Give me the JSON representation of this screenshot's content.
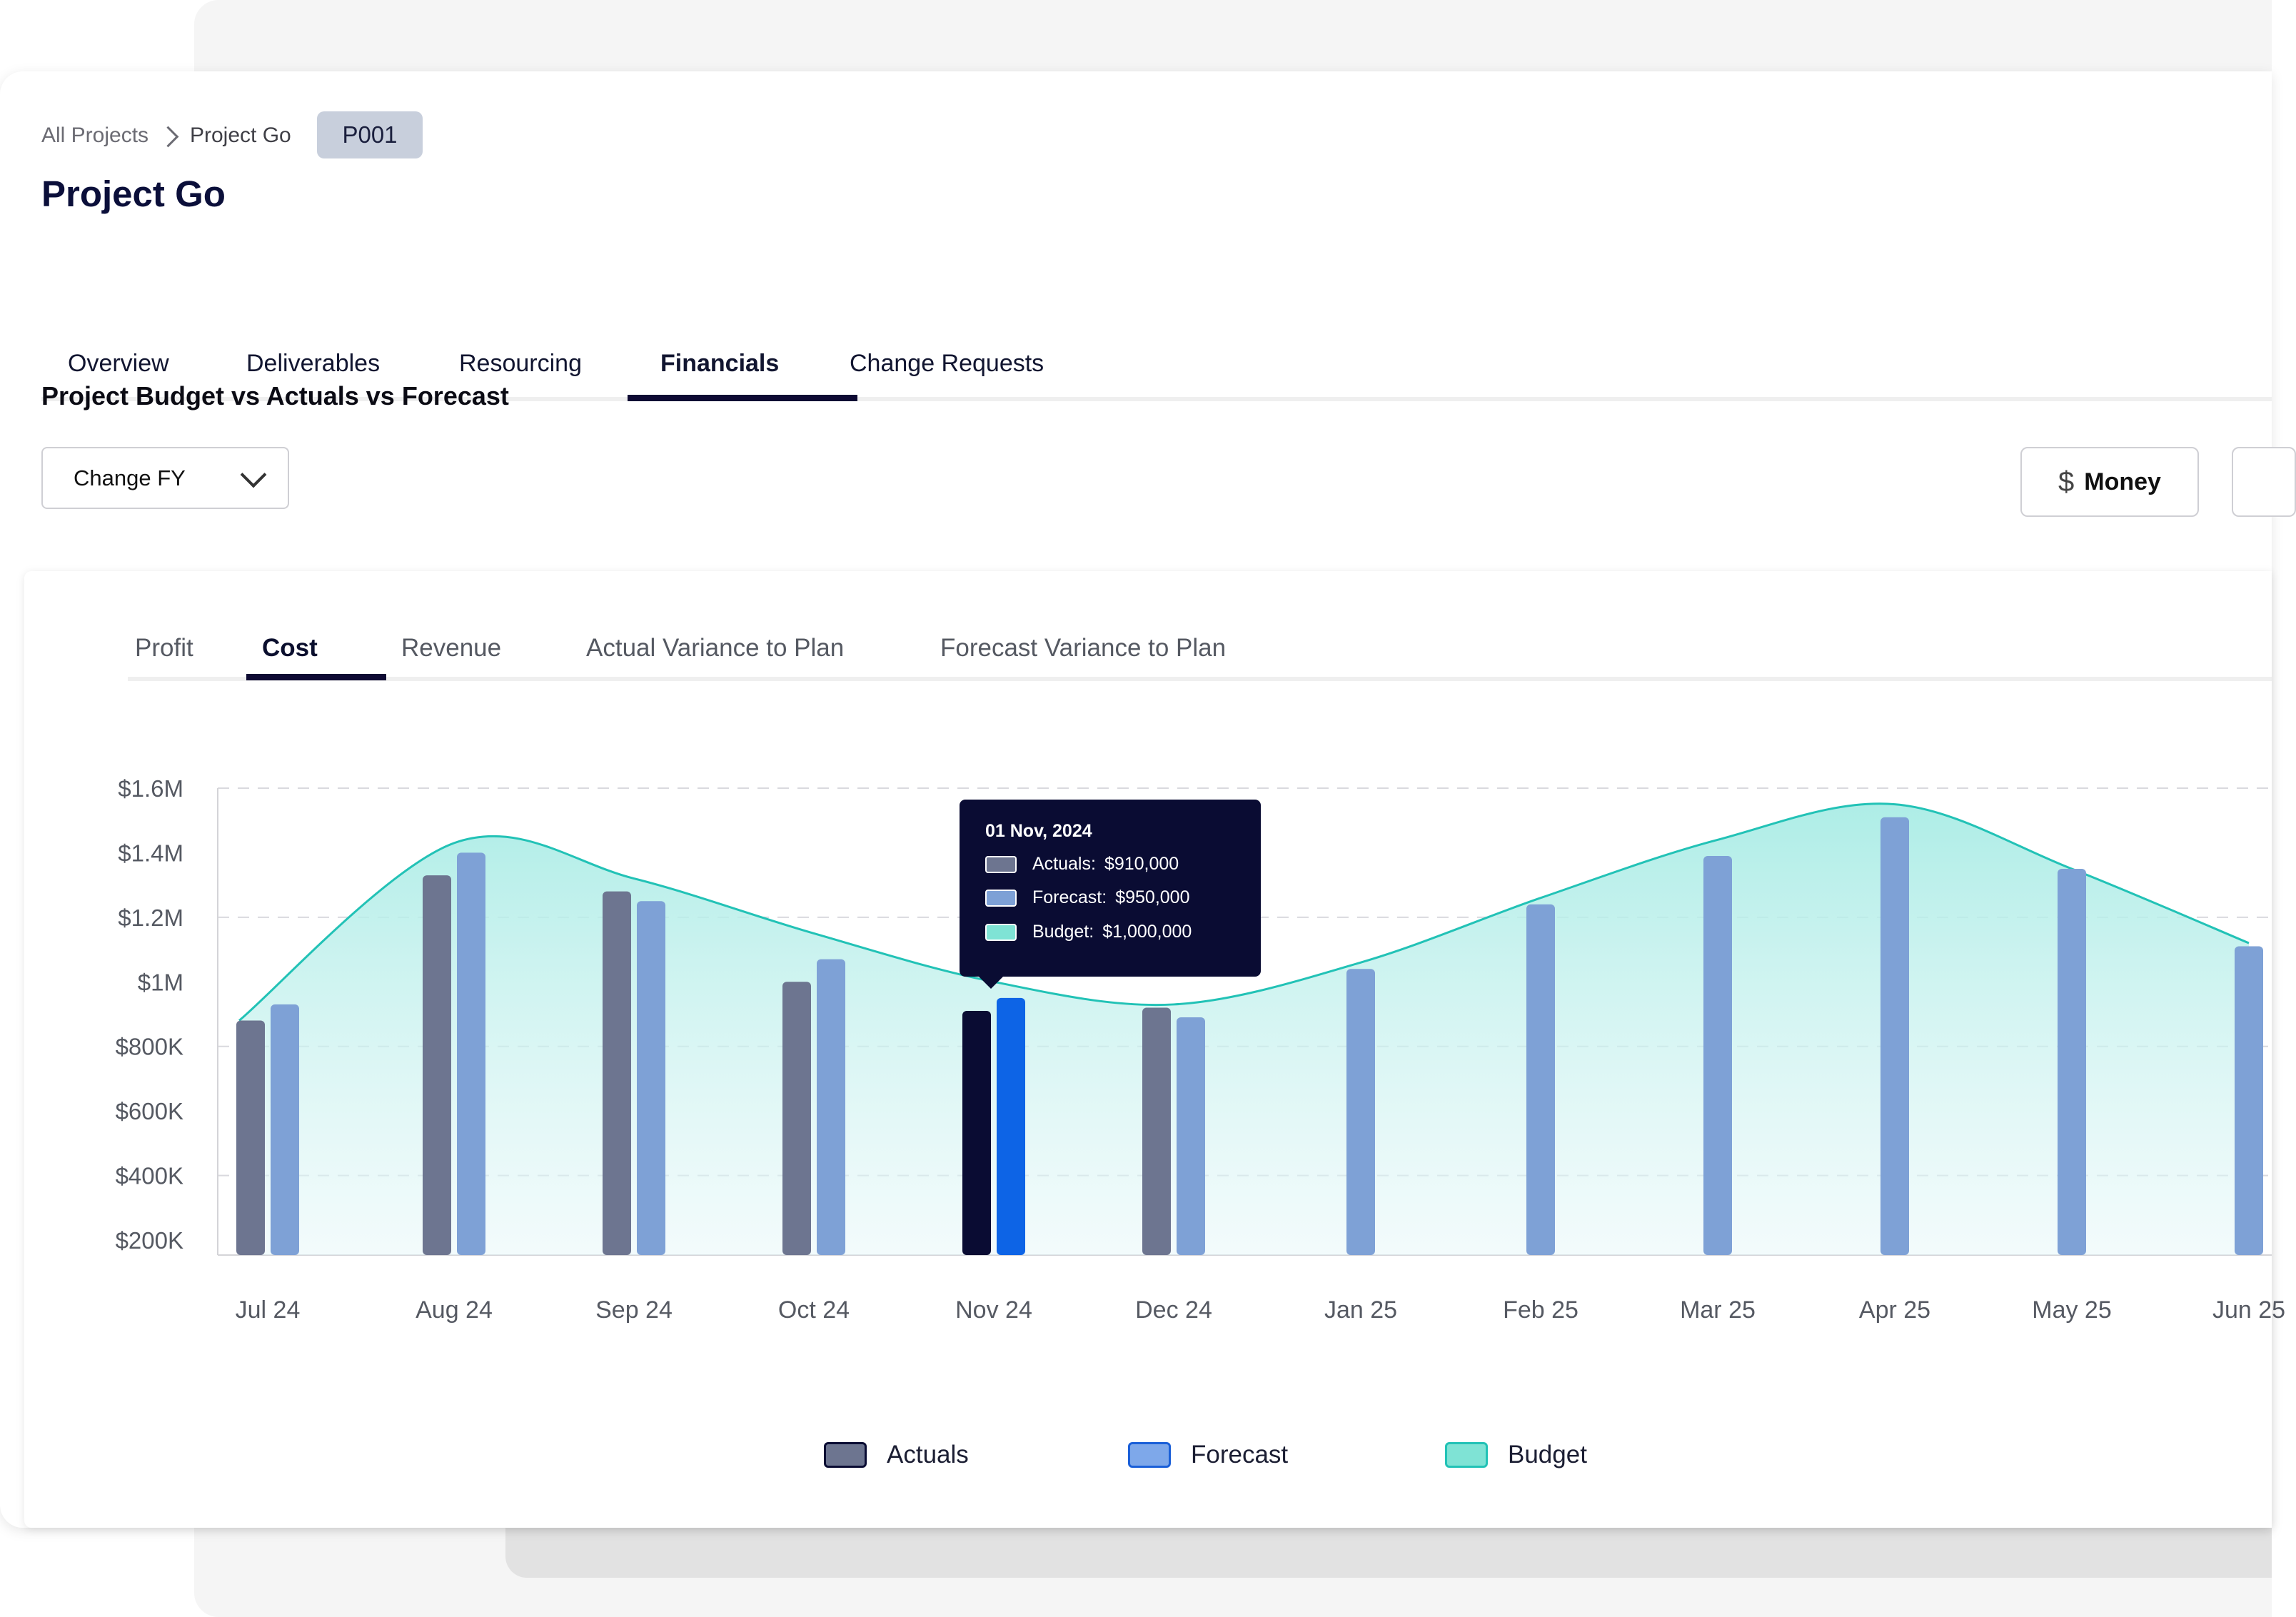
{
  "breadcrumb": {
    "root": "All Projects",
    "current": "Project Go",
    "badge": "P001"
  },
  "page_title": "Project Go",
  "tabs": [
    {
      "label": "Overview"
    },
    {
      "label": "Deliverables"
    },
    {
      "label": "Resourcing"
    },
    {
      "label": "Financials",
      "active": true
    },
    {
      "label": "Change Requests"
    }
  ],
  "section_title": "Project Budget vs Actuals vs Forecast",
  "fy_select": {
    "value": "Change FY"
  },
  "money_button": {
    "icon": "dollar-icon",
    "label": "Money"
  },
  "chart_tabs": [
    {
      "label": "Profit"
    },
    {
      "label": "Cost",
      "active": true
    },
    {
      "label": "Revenue"
    },
    {
      "label": "Actual Variance to Plan"
    },
    {
      "label": "Forecast Variance to Plan"
    }
  ],
  "tooltip": {
    "date": "01 Nov, 2024",
    "rows": [
      {
        "label": "Actuals:",
        "value": "$910,000"
      },
      {
        "label": "Forecast:",
        "value": "$950,000"
      },
      {
        "label": "Budget:",
        "value": "$1,000,000"
      }
    ]
  },
  "legend": [
    {
      "label": "Actuals"
    },
    {
      "label": "Forecast"
    },
    {
      "label": "Budget"
    }
  ],
  "colors": {
    "actuals": "#6d7590",
    "forecast": "#7ea1d6",
    "budget_fill": "#b3ede6",
    "budget_line": "#22c2b6",
    "highlight_actuals": "#0a0c33",
    "highlight_forecast": "#0d64e6"
  },
  "chart_data": {
    "type": "bar",
    "categories": [
      "Jul 24",
      "Aug 24",
      "Sep 24",
      "Oct 24",
      "Nov 24",
      "Dec 24",
      "Jan 25",
      "Feb 25",
      "Mar 25",
      "Apr 25",
      "May 25",
      "Jun 25"
    ],
    "y_ticks": [
      "$200K",
      "$400K",
      "$600K",
      "$800K",
      "$1M",
      "$1.2M",
      "$1.4M",
      "$1.6M"
    ],
    "ylim": [
      150000,
      1600000
    ],
    "highlighted_category": "Nov 24",
    "series": [
      {
        "name": "Actuals",
        "type": "bar",
        "values": [
          880000,
          1330000,
          1280000,
          1000000,
          910000,
          920000,
          null,
          null,
          null,
          null,
          null,
          null
        ]
      },
      {
        "name": "Forecast",
        "type": "bar",
        "values": [
          930000,
          1400000,
          1250000,
          1070000,
          950000,
          890000,
          1040000,
          1240000,
          1390000,
          1510000,
          1350000,
          1110000
        ]
      },
      {
        "name": "Budget",
        "type": "area",
        "values": [
          880000,
          1430000,
          1320000,
          1150000,
          1000000,
          930000,
          1060000,
          1260000,
          1440000,
          1550000,
          1350000,
          1120000
        ]
      }
    ]
  }
}
